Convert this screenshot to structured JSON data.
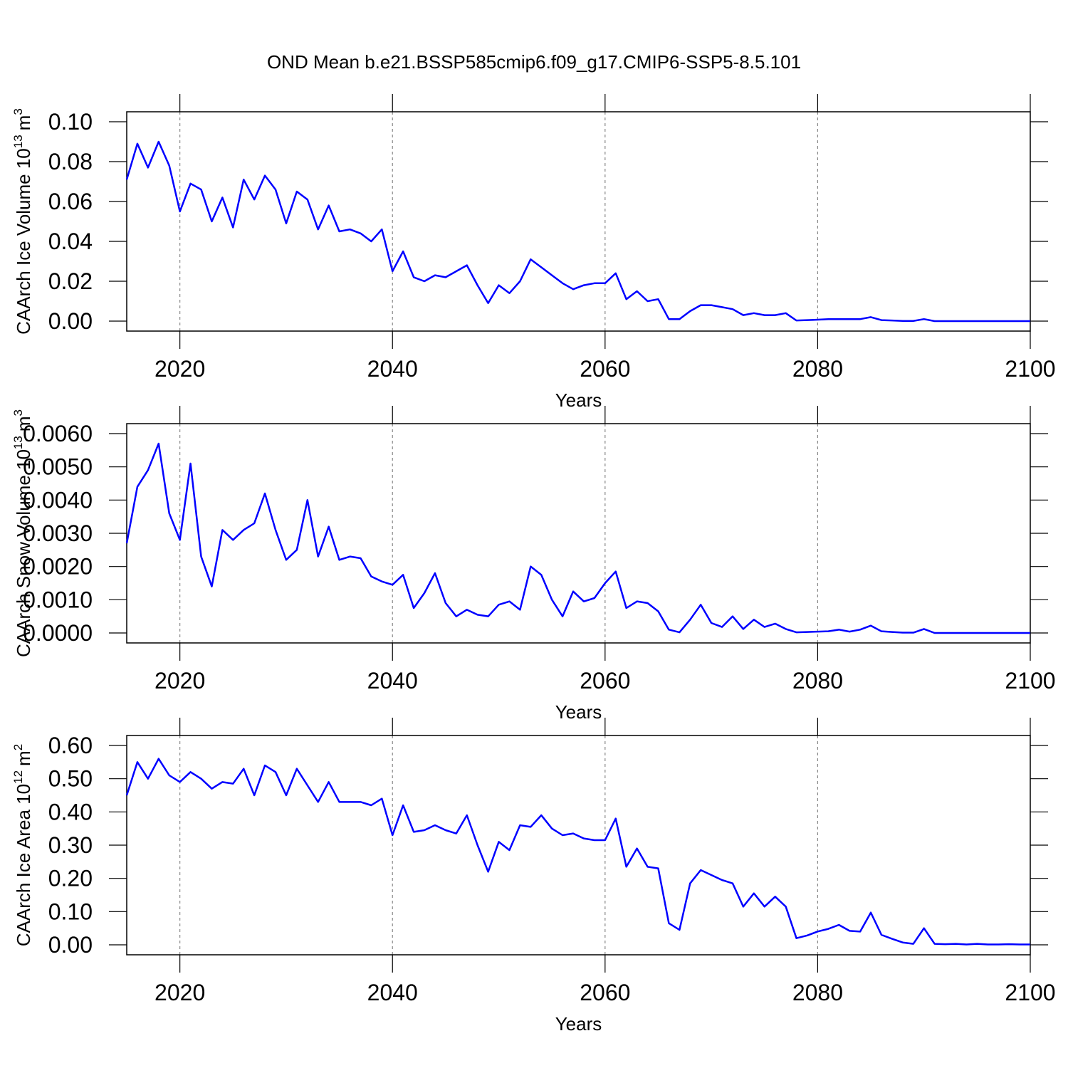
{
  "chart_data": [
    {
      "type": "line",
      "title": "OND Mean b.e21.BSSP585cmip6.f09_g17.CMIP6-SSP5-8.5.101",
      "ylabel": "CAArch Ice Volume 10",
      "ylabel_sup1": "13",
      "ylabel_unit": "m",
      "ylabel_sup2": "3",
      "xlabel": "Years",
      "color": "#0000ff",
      "xlim": [
        2015,
        2100
      ],
      "xticks": [
        2020,
        2040,
        2060,
        2080,
        2100
      ],
      "ylim": [
        -0.005,
        0.105
      ],
      "yticks": [
        {
          "value": 0,
          "label": "0.00"
        },
        {
          "value": 0.02,
          "label": "0.02"
        },
        {
          "value": 0.04,
          "label": "0.04"
        },
        {
          "value": 0.06,
          "label": "0.06"
        },
        {
          "value": 0.08,
          "label": "0.08"
        },
        {
          "value": 0.1,
          "label": "0.10"
        }
      ],
      "x": [
        2015,
        2016,
        2017,
        2018,
        2019,
        2020,
        2021,
        2022,
        2023,
        2024,
        2025,
        2026,
        2027,
        2028,
        2029,
        2030,
        2031,
        2032,
        2033,
        2034,
        2035,
        2036,
        2037,
        2038,
        2039,
        2040,
        2041,
        2042,
        2043,
        2044,
        2045,
        2046,
        2047,
        2048,
        2049,
        2050,
        2051,
        2052,
        2053,
        2054,
        2055,
        2056,
        2057,
        2058,
        2059,
        2060,
        2061,
        2062,
        2063,
        2064,
        2065,
        2066,
        2067,
        2068,
        2069,
        2070,
        2071,
        2072,
        2073,
        2074,
        2075,
        2076,
        2077,
        2078,
        2079,
        2080,
        2081,
        2082,
        2083,
        2084,
        2085,
        2086,
        2087,
        2088,
        2089,
        2090,
        2091,
        2092,
        2093,
        2094,
        2095,
        2096,
        2097,
        2098,
        2099,
        2100
      ],
      "values": [
        0.071,
        0.089,
        0.077,
        0.09,
        0.078,
        0.055,
        0.069,
        0.066,
        0.05,
        0.062,
        0.047,
        0.071,
        0.061,
        0.073,
        0.066,
        0.049,
        0.065,
        0.061,
        0.046,
        0.058,
        0.045,
        0.046,
        0.044,
        0.04,
        0.046,
        0.025,
        0.035,
        0.022,
        0.02,
        0.023,
        0.022,
        0.025,
        0.028,
        0.018,
        0.009,
        0.018,
        0.014,
        0.02,
        0.031,
        0.027,
        0.023,
        0.019,
        0.016,
        0.018,
        0.019,
        0.019,
        0.024,
        0.011,
        0.015,
        0.01,
        0.011,
        0.001,
        0.001,
        0.005,
        0.008,
        0.008,
        0.007,
        0.006,
        0.003,
        0.004,
        0.003,
        0.003,
        0.004,
        0.0003,
        0.0005,
        0.0007,
        0.001,
        0.001,
        0.001,
        0.001,
        0.002,
        0.0005,
        0.0003,
        0.0001,
        0.0001,
        0.001,
        0,
        0,
        0,
        0,
        0,
        0,
        0,
        0,
        0,
        0
      ]
    },
    {
      "type": "line",
      "ylabel": "CAArch Snow Volume 10",
      "ylabel_sup1": "13",
      "ylabel_unit": "m",
      "ylabel_sup2": "3",
      "xlabel": "Years",
      "color": "#0000ff",
      "xlim": [
        2015,
        2100
      ],
      "xticks": [
        2020,
        2040,
        2060,
        2080,
        2100
      ],
      "ylim": [
        -0.0003,
        0.0063
      ],
      "yticks": [
        {
          "value": 0,
          "label": "0.0000"
        },
        {
          "value": 0.001,
          "label": "0.0010"
        },
        {
          "value": 0.002,
          "label": "0.0020"
        },
        {
          "value": 0.003,
          "label": "0.0030"
        },
        {
          "value": 0.004,
          "label": "0.0040"
        },
        {
          "value": 0.005,
          "label": "0.0050"
        },
        {
          "value": 0.006,
          "label": "0.0060"
        }
      ],
      "x": [
        2015,
        2016,
        2017,
        2018,
        2019,
        2020,
        2021,
        2022,
        2023,
        2024,
        2025,
        2026,
        2027,
        2028,
        2029,
        2030,
        2031,
        2032,
        2033,
        2034,
        2035,
        2036,
        2037,
        2038,
        2039,
        2040,
        2041,
        2042,
        2043,
        2044,
        2045,
        2046,
        2047,
        2048,
        2049,
        2050,
        2051,
        2052,
        2053,
        2054,
        2055,
        2056,
        2057,
        2058,
        2059,
        2060,
        2061,
        2062,
        2063,
        2064,
        2065,
        2066,
        2067,
        2068,
        2069,
        2070,
        2071,
        2072,
        2073,
        2074,
        2075,
        2076,
        2077,
        2078,
        2079,
        2080,
        2081,
        2082,
        2083,
        2084,
        2085,
        2086,
        2087,
        2088,
        2089,
        2090,
        2091,
        2092,
        2093,
        2094,
        2095,
        2096,
        2097,
        2098,
        2099,
        2100
      ],
      "values": [
        0.0027,
        0.0044,
        0.0049,
        0.0057,
        0.0036,
        0.0028,
        0.0051,
        0.0023,
        0.0014,
        0.0031,
        0.0028,
        0.0031,
        0.0033,
        0.0042,
        0.0031,
        0.0022,
        0.0025,
        0.004,
        0.0023,
        0.0032,
        0.0022,
        0.0023,
        0.00225,
        0.0017,
        0.00155,
        0.00145,
        0.00175,
        0.00075,
        0.0012,
        0.0018,
        0.0009,
        0.0005,
        0.0007,
        0.00055,
        0.0005,
        0.00085,
        0.00095,
        0.0007,
        0.002,
        0.00175,
        0.001,
        0.0005,
        0.00125,
        0.00095,
        0.00105,
        0.0015,
        0.00185,
        0.00075,
        0.00095,
        0.0009,
        0.00065,
        0.0001,
        2e-05,
        0.0004,
        0.00085,
        0.0003,
        0.00018,
        0.0005,
        0.00012,
        0.0004,
        0.00018,
        0.00028,
        0.00012,
        2e-05,
        3e-05,
        4e-05,
        5e-05,
        0.0001,
        4e-05,
        0.0001,
        0.00022,
        5e-05,
        3e-05,
        1e-05,
        1e-05,
        0.00012,
        0,
        0,
        0,
        0,
        0,
        0,
        0,
        0,
        0,
        0
      ]
    },
    {
      "type": "line",
      "ylabel": "CAArch Ice Area 10",
      "ylabel_sup1": "12",
      "ylabel_unit": "m",
      "ylabel_sup2": "2",
      "xlabel": "Years",
      "color": "#0000ff",
      "xlim": [
        2015,
        2100
      ],
      "xticks": [
        2020,
        2040,
        2060,
        2080,
        2100
      ],
      "ylim": [
        -0.03,
        0.63
      ],
      "yticks": [
        {
          "value": 0,
          "label": "0.00"
        },
        {
          "value": 0.1,
          "label": "0.10"
        },
        {
          "value": 0.2,
          "label": "0.20"
        },
        {
          "value": 0.3,
          "label": "0.30"
        },
        {
          "value": 0.4,
          "label": "0.40"
        },
        {
          "value": 0.5,
          "label": "0.50"
        },
        {
          "value": 0.6,
          "label": "0.60"
        }
      ],
      "x": [
        2015,
        2016,
        2017,
        2018,
        2019,
        2020,
        2021,
        2022,
        2023,
        2024,
        2025,
        2026,
        2027,
        2028,
        2029,
        2030,
        2031,
        2032,
        2033,
        2034,
        2035,
        2036,
        2037,
        2038,
        2039,
        2040,
        2041,
        2042,
        2043,
        2044,
        2045,
        2046,
        2047,
        2048,
        2049,
        2050,
        2051,
        2052,
        2053,
        2054,
        2055,
        2056,
        2057,
        2058,
        2059,
        2060,
        2061,
        2062,
        2063,
        2064,
        2065,
        2066,
        2067,
        2068,
        2069,
        2070,
        2071,
        2072,
        2073,
        2074,
        2075,
        2076,
        2077,
        2078,
        2079,
        2080,
        2081,
        2082,
        2083,
        2084,
        2085,
        2086,
        2087,
        2088,
        2089,
        2090,
        2091,
        2092,
        2093,
        2094,
        2095,
        2096,
        2097,
        2098,
        2099,
        2100
      ],
      "values": [
        0.45,
        0.55,
        0.5,
        0.56,
        0.51,
        0.49,
        0.52,
        0.5,
        0.47,
        0.49,
        0.485,
        0.53,
        0.45,
        0.54,
        0.52,
        0.45,
        0.53,
        0.48,
        0.43,
        0.49,
        0.43,
        0.43,
        0.43,
        0.42,
        0.44,
        0.33,
        0.42,
        0.34,
        0.345,
        0.36,
        0.345,
        0.335,
        0.39,
        0.3,
        0.22,
        0.31,
        0.285,
        0.36,
        0.355,
        0.39,
        0.35,
        0.33,
        0.335,
        0.32,
        0.315,
        0.315,
        0.38,
        0.235,
        0.29,
        0.235,
        0.23,
        0.065,
        0.045,
        0.185,
        0.225,
        0.21,
        0.195,
        0.185,
        0.115,
        0.155,
        0.115,
        0.145,
        0.115,
        0.02,
        0.028,
        0.04,
        0.048,
        0.06,
        0.042,
        0.04,
        0.097,
        0.03,
        0.018,
        0.007,
        0.003,
        0.05,
        0.003,
        0.002,
        0.003,
        0.001,
        0.003,
        0.001,
        0.001,
        0.002,
        0.001,
        0.001
      ]
    }
  ]
}
